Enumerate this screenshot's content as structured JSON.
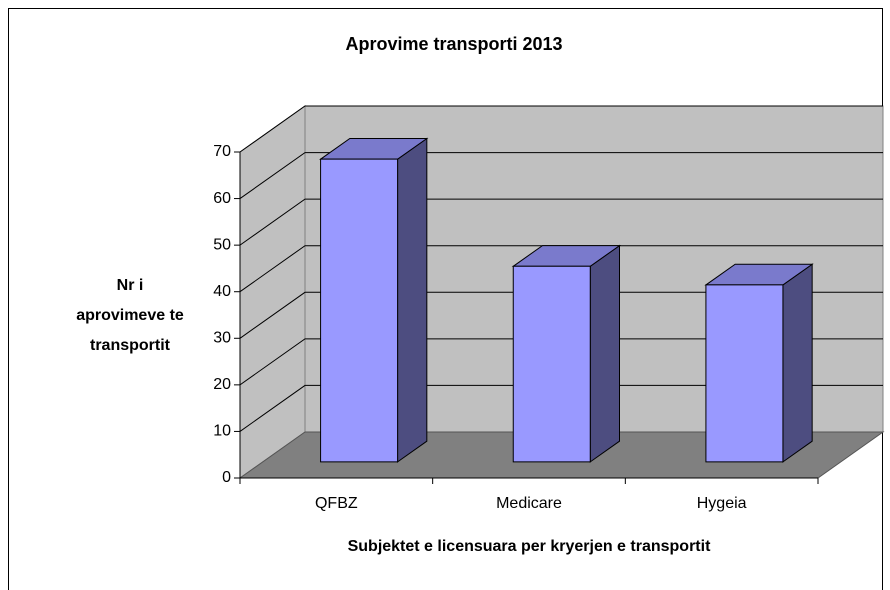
{
  "chart_data": {
    "type": "bar3d",
    "title": "Aprovime transporti 2013",
    "y_label": [
      "Nr i",
      "aprovimeve te",
      "transportit"
    ],
    "x_label": "Subjektet e licensuara per kryerjen e transportit",
    "categories": [
      "QFBZ",
      "Medicare",
      "Hygeia"
    ],
    "values": [
      65,
      42,
      38
    ],
    "color": "#9999ff",
    "ylim": [
      0,
      70
    ],
    "yticks": [
      0,
      10,
      20,
      30,
      40,
      50,
      60,
      70
    ],
    "grid": true
  }
}
